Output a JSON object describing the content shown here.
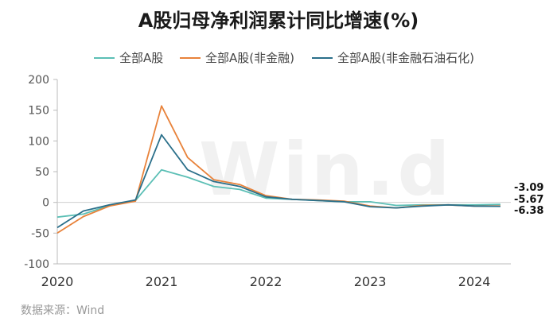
{
  "title": "A股归母净利润累计同比增速(%)",
  "source": "数据来源：Wind",
  "watermark": "Win.d",
  "colors": {
    "all_a": "#5bbfb5",
    "non_fin": "#e8823a",
    "non_fin_ex_petro": "#2a6f8a",
    "grid": "#e6e6e6"
  },
  "chart_data": {
    "type": "line",
    "title": "A股归母净利润累计同比增速(%)",
    "xlabel": "",
    "ylabel": "",
    "ylim": [
      -100,
      200
    ],
    "yticks": [
      -100,
      -50,
      0,
      50,
      100,
      150,
      200
    ],
    "xticks": [
      2020,
      2021,
      2022,
      2023,
      2024
    ],
    "xlim": [
      2020.0,
      2024.35
    ],
    "grid": false,
    "legend": "top",
    "x": [
      2020.0,
      2020.25,
      2020.5,
      2020.75,
      2021.0,
      2021.25,
      2021.5,
      2021.75,
      2022.0,
      2022.25,
      2022.5,
      2022.75,
      2023.0,
      2023.25,
      2023.5,
      2023.75,
      2024.0,
      2024.25
    ],
    "series": [
      {
        "name": "全部A股",
        "color": "#5bbfb5",
        "values": [
          -24,
          -19,
          -5,
          3,
          53,
          41,
          26,
          21,
          7,
          5,
          3,
          1,
          1,
          -5,
          -4,
          -4,
          -4,
          -3.09
        ]
      },
      {
        "name": "全部A股(非金融)",
        "color": "#e8823a",
        "values": [
          -50,
          -23,
          -6,
          2,
          157,
          73,
          37,
          29,
          11,
          5,
          4,
          2,
          -6,
          -9,
          -5,
          -4,
          -6,
          -5.67
        ]
      },
      {
        "name": "全部A股(非金融石油石化)",
        "color": "#2a6f8a",
        "values": [
          -41,
          -14,
          -4,
          4,
          110,
          53,
          34,
          26,
          9,
          5,
          3,
          1,
          -7,
          -9,
          -6,
          -4,
          -6,
          -6.38
        ]
      }
    ],
    "end_labels": [
      "-3.09",
      "-5.67",
      "-6.38"
    ]
  }
}
